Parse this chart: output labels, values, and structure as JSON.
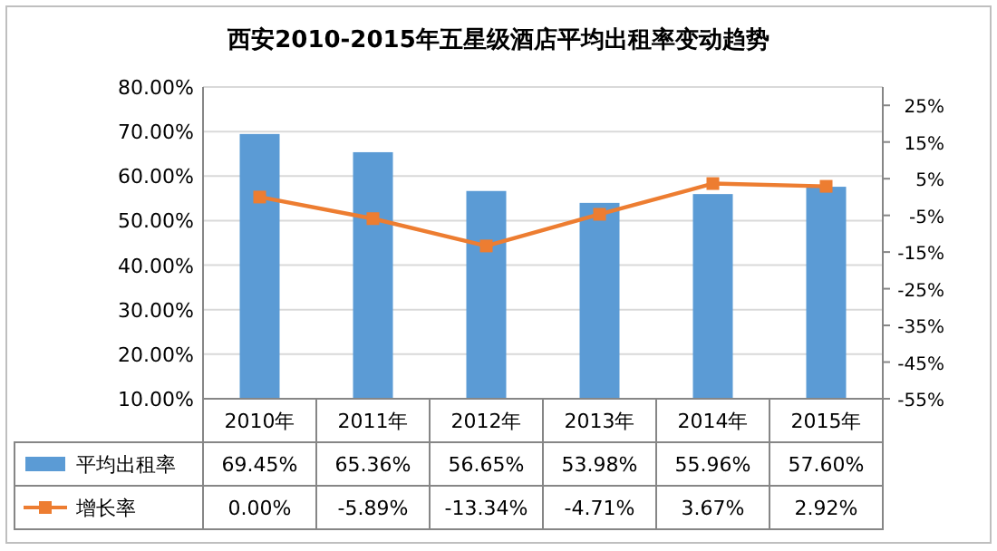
{
  "chart_data": {
    "type": "bar",
    "title": "西安2010-2015年五星级酒店平均出租率变动趋势",
    "categories": [
      "2010年",
      "2011年",
      "2012年",
      "2013年",
      "2014年",
      "2015年"
    ],
    "series": [
      {
        "name": "平均出租率",
        "color": "#5b9bd5",
        "values": [
          69.45,
          65.36,
          56.65,
          53.98,
          55.96,
          57.6
        ],
        "value_labels": [
          "69.45%",
          "65.36%",
          "56.65%",
          "53.98%",
          "55.96%",
          "57.60%"
        ]
      },
      {
        "name": "增长率",
        "type": "line",
        "axis": "y2",
        "color": "#ed7d31",
        "values": [
          0,
          -5.89,
          -13.34,
          -4.71,
          3.67,
          2.92
        ],
        "value_labels": [
          "0.00%",
          "-5.89%",
          "-13.34%",
          "-4.71%",
          "3.67%",
          "2.92%"
        ]
      }
    ],
    "ylim": [
      10,
      80
    ],
    "yticks": [
      {
        "value": 10,
        "label": "10.00%"
      },
      {
        "value": 20,
        "label": "20.00%"
      },
      {
        "value": 30,
        "label": "30.00%"
      },
      {
        "value": 40,
        "label": "40.00%"
      },
      {
        "value": 50,
        "label": "50.00%"
      },
      {
        "value": 60,
        "label": "60.00%"
      },
      {
        "value": 70,
        "label": "70.00%"
      },
      {
        "value": 80,
        "label": "80.00%"
      }
    ],
    "y2lim": [
      -55,
      30
    ],
    "y2ticks": [
      {
        "value": -55,
        "label": "-55%"
      },
      {
        "value": -45,
        "label": "-45%"
      },
      {
        "value": -35,
        "label": "-35%"
      },
      {
        "value": -25,
        "label": "-25%"
      },
      {
        "value": -15,
        "label": "-15%"
      },
      {
        "value": -5,
        "label": "-5%"
      },
      {
        "value": 5,
        "label": "5%"
      },
      {
        "value": 15,
        "label": "15%"
      },
      {
        "value": 25,
        "label": "25%"
      }
    ],
    "grid": "y",
    "legend": "bottom",
    "marker": "square"
  }
}
